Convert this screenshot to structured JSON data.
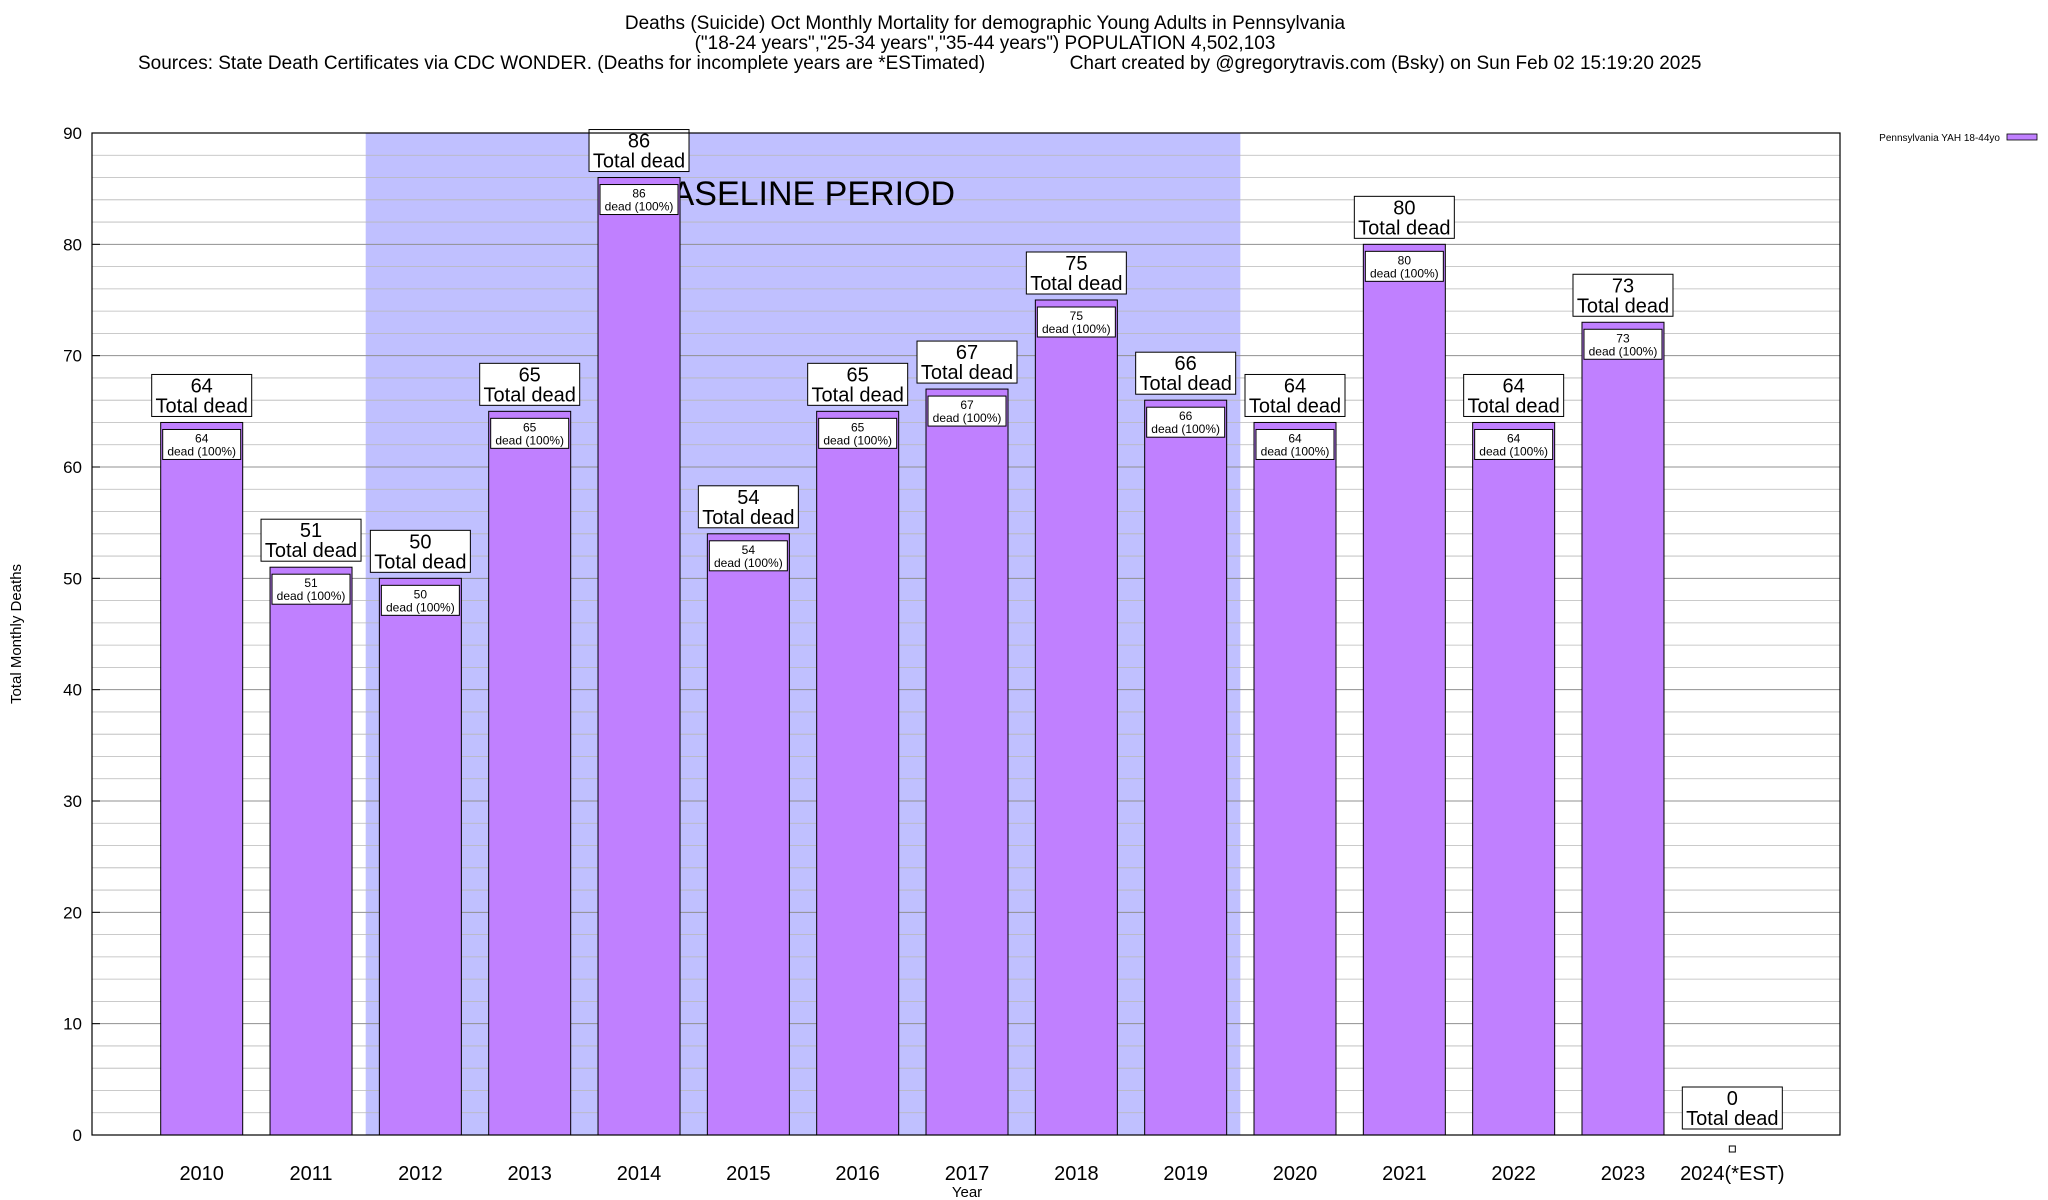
{
  "header": {
    "title_line1": "Deaths (Suicide) Oct Monthly Mortality for demographic Young Adults in Pennsylvania",
    "title_line2": "(\"18-24 years\",\"25-34 years\",\"35-44 years\") POPULATION 4,502,103",
    "title_line3": "Sources: State Death Certificates via CDC WONDER. (Deaths for incomplete years are *ESTimated)                Chart created by @gregorytravis.com (Bsky) on Sun Feb 02 15:19:20 2025"
  },
  "chart_data": {
    "type": "bar",
    "xlabel": "Year",
    "ylabel": "Total Monthly Deaths",
    "ylim": [
      0,
      90
    ],
    "yticks": [
      0,
      10,
      20,
      30,
      40,
      50,
      60,
      70,
      80,
      90
    ],
    "minor_grid_step": 2,
    "grid": true,
    "categories": [
      "2010",
      "2011",
      "2012",
      "2013",
      "2014",
      "2015",
      "2016",
      "2017",
      "2018",
      "2019",
      "2020",
      "2021",
      "2022",
      "2023",
      "2024(*EST)"
    ],
    "series": [
      {
        "name": "Pennsylvania YAH 18-44yo",
        "color": "#c080ff",
        "values": [
          64,
          51,
          50,
          65,
          86,
          54,
          65,
          67,
          75,
          66,
          64,
          80,
          64,
          73,
          0
        ]
      }
    ],
    "total_label_text": "Total dead",
    "inner_label_suffix": "dead (100%)",
    "baseline_period": {
      "label": "BASELINE PERIOD",
      "from": "2012",
      "to": "2019",
      "color": "#c0c0ff"
    },
    "legend_position": "top-right"
  }
}
